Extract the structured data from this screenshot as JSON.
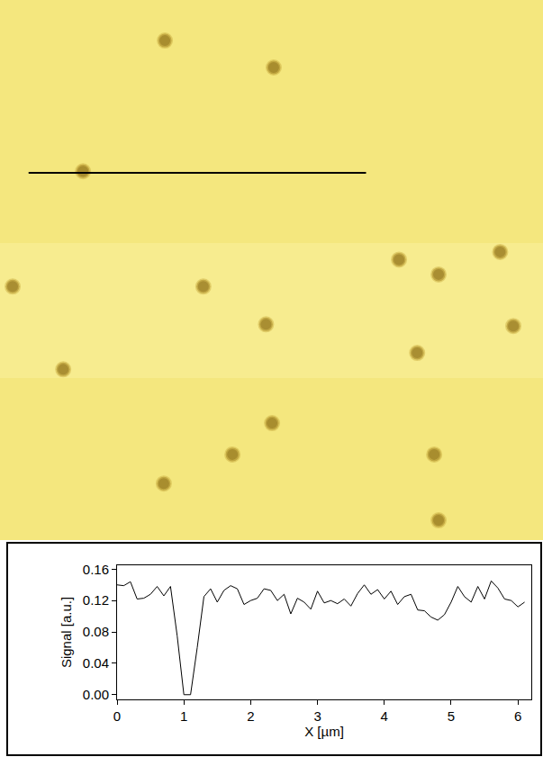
{
  "chart_data": [
    {
      "type": "scatter",
      "tick_labels": false,
      "grid": false,
      "xlim": [
        0,
        9.88
      ],
      "ylim": [
        0,
        9.84
      ],
      "x": [
        3.0,
        4.98,
        1.51,
        0.23,
        3.7,
        7.26,
        7.98,
        9.1,
        4.84,
        9.34,
        7.59,
        1.15,
        4.95,
        4.23,
        2.98,
        7.9,
        7.98
      ],
      "y": [
        9.1,
        8.61,
        6.72,
        4.62,
        4.62,
        5.11,
        4.84,
        5.25,
        3.93,
        3.9,
        3.41,
        3.11,
        2.13,
        1.56,
        1.03,
        1.56,
        0.36
      ],
      "color": "#8f6f14",
      "marker": "circle",
      "profile_line": {
        "x": [
          0.52,
          6.66
        ],
        "y": [
          6.69,
          6.69
        ],
        "color": "#000000"
      }
    },
    {
      "type": "line",
      "xlabel": "X [µm]",
      "ylabel": "Signal [a.u.]",
      "grid": false,
      "color": "#000000",
      "x": [
        0,
        0.1,
        0.2,
        0.3,
        0.4,
        0.5,
        0.6,
        0.7,
        0.8,
        0.9,
        1.0,
        1.1,
        1.2,
        1.3,
        1.4,
        1.5,
        1.6,
        1.7,
        1.8,
        1.9,
        2.0,
        2.1,
        2.2,
        2.3,
        2.4,
        2.5,
        2.6,
        2.7,
        2.8,
        2.9,
        3.0,
        3.1,
        3.2,
        3.3,
        3.4,
        3.5,
        3.6,
        3.7,
        3.8,
        3.9,
        4.0,
        4.1,
        4.2,
        4.3,
        4.4,
        4.5,
        4.6,
        4.7,
        4.8,
        4.9,
        5.0,
        5.1,
        5.2,
        5.3,
        5.4,
        5.5,
        5.6,
        5.7,
        5.8,
        5.9,
        6.0,
        6.1
      ],
      "values": [
        0.14,
        0.139,
        0.144,
        0.122,
        0.123,
        0.128,
        0.138,
        0.126,
        0.138,
        0.075,
        0.0,
        0.0,
        0.06,
        0.125,
        0.135,
        0.118,
        0.133,
        0.139,
        0.135,
        0.115,
        0.12,
        0.123,
        0.135,
        0.133,
        0.12,
        0.128,
        0.103,
        0.123,
        0.118,
        0.109,
        0.132,
        0.117,
        0.12,
        0.116,
        0.122,
        0.113,
        0.129,
        0.14,
        0.128,
        0.134,
        0.122,
        0.132,
        0.115,
        0.125,
        0.128,
        0.108,
        0.107,
        0.099,
        0.095,
        0.102,
        0.118,
        0.138,
        0.125,
        0.118,
        0.138,
        0.122,
        0.145,
        0.136,
        0.122,
        0.12,
        0.112,
        0.118
      ],
      "xlim": [
        0,
        6.2
      ],
      "ylim": [
        -0.006,
        0.165
      ],
      "xticks": [
        0,
        1,
        2,
        3,
        4,
        5,
        6
      ],
      "yticks": [
        {
          "value": 0,
          "label": "0.00"
        },
        0.04,
        0.08,
        0.12,
        0.16
      ]
    }
  ]
}
